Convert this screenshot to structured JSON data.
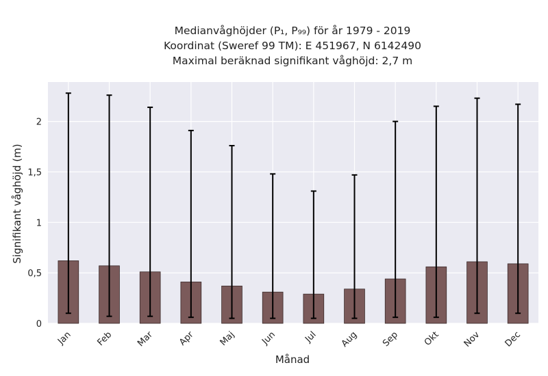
{
  "chart_data": {
    "type": "bar",
    "title": "Medianvåghöjder (P₁, P₉₉) för år 1979 - 2019",
    "subtitle": [
      "Koordinat (Sweref 99 TM): E 451967, N 6142490",
      "Maximal beräknad signifikant våghöjd: 2,7 m"
    ],
    "xlabel": "Månad",
    "ylabel": "Signifikant våghöjd (m)",
    "categories": [
      "Jan",
      "Feb",
      "Mar",
      "Apr",
      "Maj",
      "Jun",
      "Jul",
      "Aug",
      "Sep",
      "Okt",
      "Nov",
      "Dec"
    ],
    "values": [
      0.62,
      0.57,
      0.51,
      0.41,
      0.37,
      0.31,
      0.29,
      0.34,
      0.44,
      0.56,
      0.61,
      0.59
    ],
    "p1": [
      0.1,
      0.07,
      0.07,
      0.06,
      0.05,
      0.05,
      0.05,
      0.05,
      0.06,
      0.06,
      0.1,
      0.1
    ],
    "p99": [
      2.28,
      2.26,
      2.14,
      1.91,
      1.76,
      1.48,
      1.31,
      1.47,
      2.0,
      2.15,
      2.23,
      2.17
    ],
    "yticks": [
      "0",
      "0,5",
      "1",
      "1,5",
      "2"
    ],
    "ytick_values": [
      0,
      0.5,
      1,
      1.5,
      2
    ],
    "ylim": [
      0,
      2.39
    ],
    "grid": true,
    "bar_color": "#7b5a5a",
    "background_color": "#eaeaf2",
    "errorbar_color": "#000000"
  }
}
